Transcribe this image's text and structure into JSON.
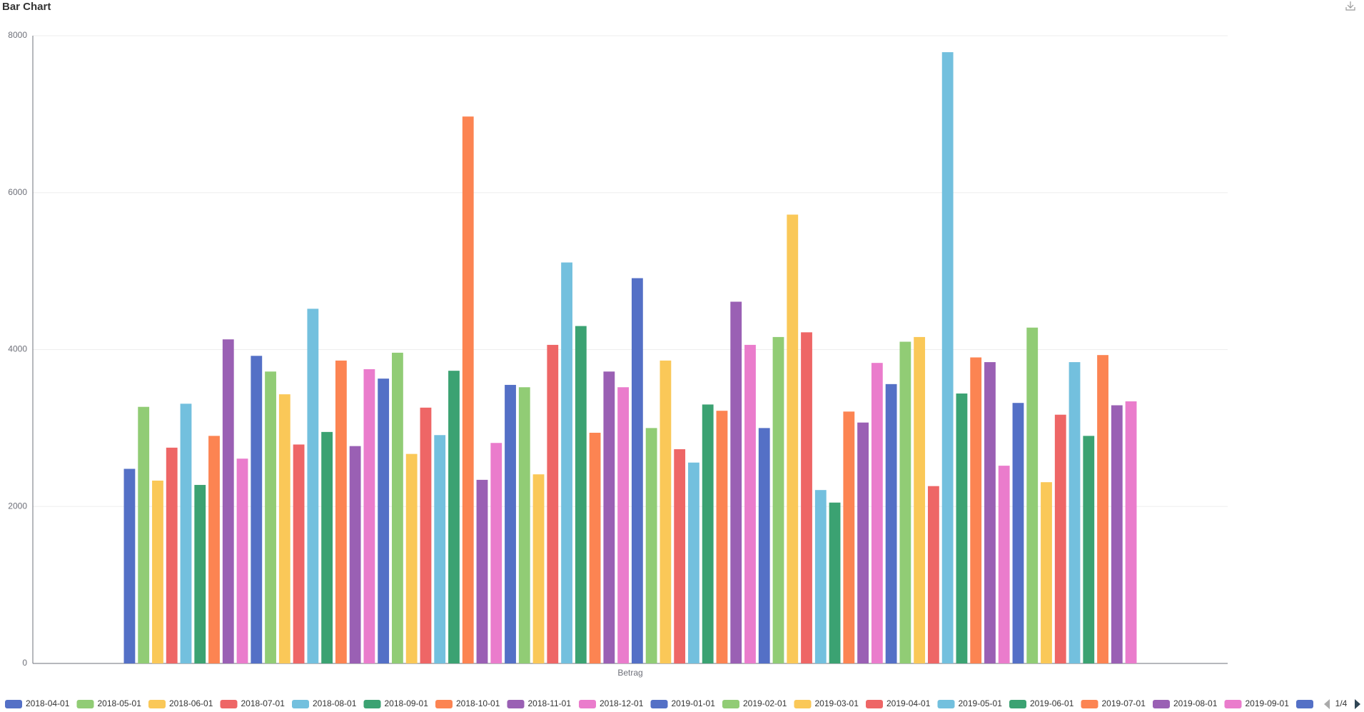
{
  "chart_data": {
    "type": "bar",
    "title": "Bar Chart",
    "categories": [
      "Betrag"
    ],
    "ylim": [
      0,
      8000
    ],
    "yticks": [
      0,
      2000,
      4000,
      6000,
      8000
    ],
    "grid": true,
    "legend_page": "1/4",
    "series": [
      {
        "name": "2018-04-01",
        "color": "#5470c6",
        "values": [
          2480
        ]
      },
      {
        "name": "2018-05-01",
        "color": "#91cc75",
        "values": [
          3270
        ]
      },
      {
        "name": "2018-06-01",
        "color": "#fac858",
        "values": [
          2330
        ]
      },
      {
        "name": "2018-07-01",
        "color": "#ee6666",
        "values": [
          2750
        ]
      },
      {
        "name": "2018-08-01",
        "color": "#73c0de",
        "values": [
          3310
        ]
      },
      {
        "name": "2018-09-01",
        "color": "#3ba272",
        "values": [
          2275
        ]
      },
      {
        "name": "2018-10-01",
        "color": "#fc8452",
        "values": [
          2900
        ]
      },
      {
        "name": "2018-11-01",
        "color": "#9a60b4",
        "values": [
          4130
        ]
      },
      {
        "name": "2018-12-01",
        "color": "#ea7ccc",
        "values": [
          2610
        ]
      },
      {
        "name": "2019-01-01",
        "color": "#5470c6",
        "values": [
          3920
        ]
      },
      {
        "name": "2019-02-01",
        "color": "#91cc75",
        "values": [
          3720
        ]
      },
      {
        "name": "2019-03-01",
        "color": "#fac858",
        "values": [
          3430
        ]
      },
      {
        "name": "2019-04-01",
        "color": "#ee6666",
        "values": [
          2790
        ]
      },
      {
        "name": "2019-05-01",
        "color": "#73c0de",
        "values": [
          4520
        ]
      },
      {
        "name": "2019-06-01",
        "color": "#3ba272",
        "values": [
          2950
        ]
      },
      {
        "name": "2019-07-01",
        "color": "#fc8452",
        "values": [
          3860
        ]
      },
      {
        "name": "2019-08-01",
        "color": "#9a60b4",
        "values": [
          2770
        ]
      },
      {
        "name": "2019-09-01",
        "color": "#ea7ccc",
        "values": [
          3750
        ]
      },
      {
        "color": "#5470c6",
        "values": [
          3630
        ]
      },
      {
        "color": "#91cc75",
        "values": [
          3960
        ]
      },
      {
        "color": "#fac858",
        "values": [
          2670
        ]
      },
      {
        "color": "#ee6666",
        "values": [
          3260
        ]
      },
      {
        "color": "#73c0de",
        "values": [
          2910
        ]
      },
      {
        "color": "#3ba272",
        "values": [
          3730
        ]
      },
      {
        "color": "#fc8452",
        "values": [
          6970
        ]
      },
      {
        "color": "#9a60b4",
        "values": [
          2340
        ]
      },
      {
        "color": "#ea7ccc",
        "values": [
          2810
        ]
      },
      {
        "color": "#5470c6",
        "values": [
          3550
        ]
      },
      {
        "color": "#91cc75",
        "values": [
          3520
        ]
      },
      {
        "color": "#fac858",
        "values": [
          2410
        ]
      },
      {
        "color": "#ee6666",
        "values": [
          4060
        ]
      },
      {
        "color": "#73c0de",
        "values": [
          5110
        ]
      },
      {
        "color": "#3ba272",
        "values": [
          4300
        ]
      },
      {
        "color": "#fc8452",
        "values": [
          2940
        ]
      },
      {
        "color": "#9a60b4",
        "values": [
          3720
        ]
      },
      {
        "color": "#ea7ccc",
        "values": [
          3520
        ]
      },
      {
        "color": "#5470c6",
        "values": [
          4910
        ]
      },
      {
        "color": "#91cc75",
        "values": [
          3000
        ]
      },
      {
        "color": "#fac858",
        "values": [
          3860
        ]
      },
      {
        "color": "#ee6666",
        "values": [
          2730
        ]
      },
      {
        "color": "#73c0de",
        "values": [
          2560
        ]
      },
      {
        "color": "#3ba272",
        "values": [
          3300
        ]
      },
      {
        "color": "#fc8452",
        "values": [
          3220
        ]
      },
      {
        "color": "#9a60b4",
        "values": [
          4610
        ]
      },
      {
        "color": "#ea7ccc",
        "values": [
          4060
        ]
      },
      {
        "color": "#5470c6",
        "values": [
          3000
        ]
      },
      {
        "color": "#91cc75",
        "values": [
          4160
        ]
      },
      {
        "color": "#fac858",
        "values": [
          5720
        ]
      },
      {
        "color": "#ee6666",
        "values": [
          4220
        ]
      },
      {
        "color": "#73c0de",
        "values": [
          2210
        ]
      },
      {
        "color": "#3ba272",
        "values": [
          2050
        ]
      },
      {
        "color": "#fc8452",
        "values": [
          3210
        ]
      },
      {
        "color": "#9a60b4",
        "values": [
          3070
        ]
      },
      {
        "color": "#ea7ccc",
        "values": [
          3830
        ]
      },
      {
        "color": "#5470c6",
        "values": [
          3560
        ]
      },
      {
        "color": "#91cc75",
        "values": [
          4100
        ]
      },
      {
        "color": "#fac858",
        "values": [
          4160
        ]
      },
      {
        "color": "#ee6666",
        "values": [
          2260
        ]
      },
      {
        "color": "#73c0de",
        "values": [
          7790
        ]
      },
      {
        "color": "#3ba272",
        "values": [
          3440
        ]
      },
      {
        "color": "#fc8452",
        "values": [
          3900
        ]
      },
      {
        "color": "#9a60b4",
        "values": [
          3840
        ]
      },
      {
        "color": "#ea7ccc",
        "values": [
          2520
        ]
      },
      {
        "color": "#5470c6",
        "values": [
          3320
        ]
      },
      {
        "color": "#91cc75",
        "values": [
          4280
        ]
      },
      {
        "color": "#fac858",
        "values": [
          2310
        ]
      },
      {
        "color": "#ee6666",
        "values": [
          3170
        ]
      },
      {
        "color": "#73c0de",
        "values": [
          3840
        ]
      },
      {
        "color": "#3ba272",
        "values": [
          2900
        ]
      },
      {
        "color": "#fc8452",
        "values": [
          3930
        ]
      },
      {
        "color": "#9a60b4",
        "values": [
          3290
        ]
      },
      {
        "color": "#ea7ccc",
        "values": [
          3340
        ]
      }
    ]
  }
}
